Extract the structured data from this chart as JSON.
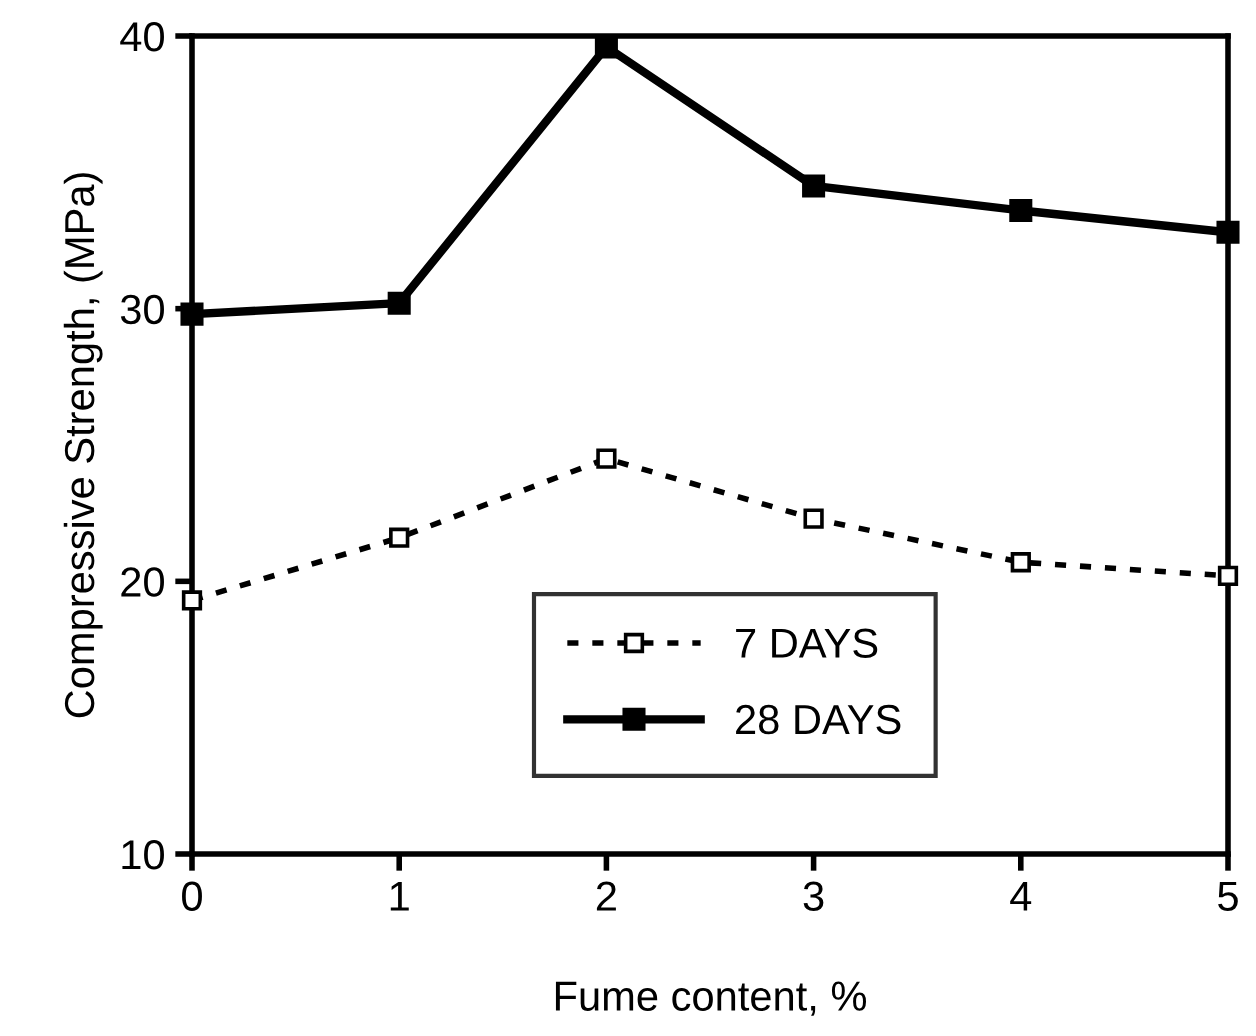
{
  "chart_data": {
    "type": "line",
    "xlabel": "Fume content, %",
    "ylabel": "Compressive Strength, (MPa)",
    "x": [
      0,
      1,
      2,
      3,
      4,
      5
    ],
    "series": [
      {
        "name": "7 DAYS",
        "color": "#000000",
        "values": [
          19.3,
          21.6,
          24.5,
          22.3,
          20.7,
          20.2
        ],
        "line_style": "dotted",
        "marker": "square"
      },
      {
        "name": "28 DAYS",
        "color": "#000000",
        "values": [
          29.8,
          30.2,
          39.6,
          34.5,
          33.6,
          32.8
        ],
        "line_style": "solid",
        "marker": "square"
      }
    ],
    "xlim": [
      0,
      5
    ],
    "ylim": [
      10,
      40
    ],
    "xticks": [
      0,
      1,
      2,
      3,
      4,
      5
    ],
    "yticks": [
      10,
      20,
      30,
      40
    ],
    "grid": false,
    "legend": "bottom"
  }
}
